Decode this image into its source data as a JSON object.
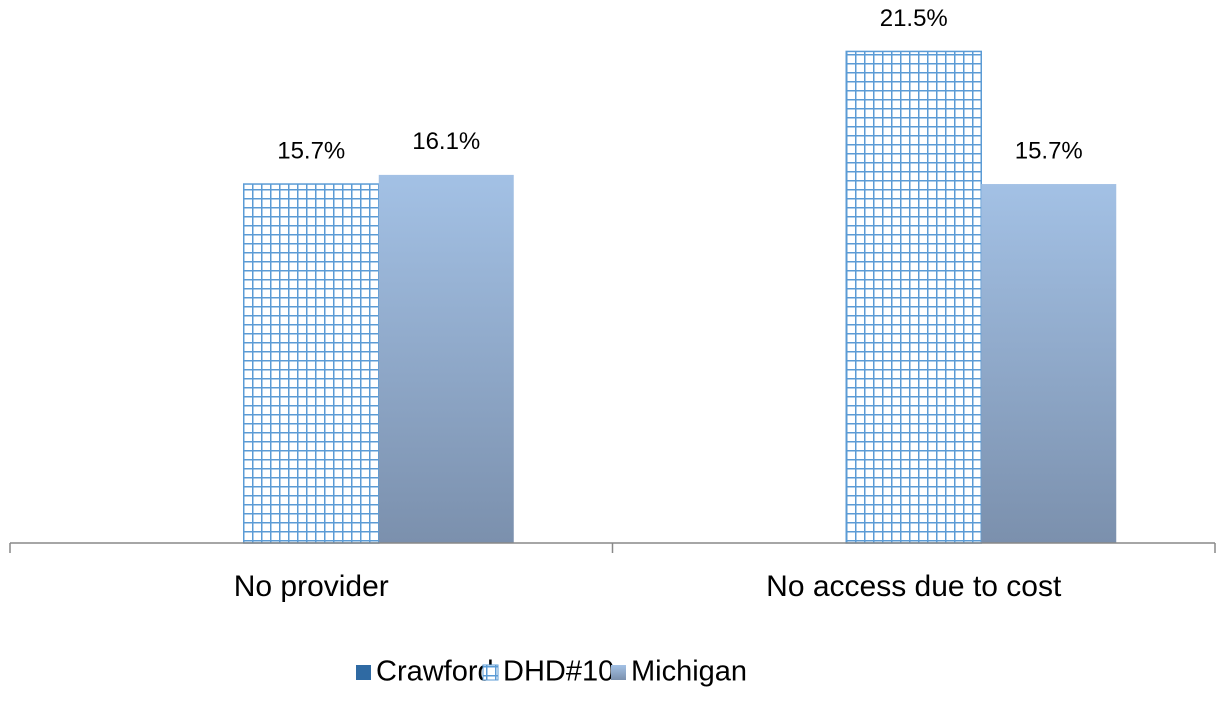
{
  "chart_data": {
    "type": "bar",
    "categories": [
      "No provider",
      "No access due to cost"
    ],
    "series": [
      {
        "name": "Crawford",
        "color": "#2f6aa3",
        "values": [
          null,
          null
        ],
        "value_labels": [
          null,
          null
        ]
      },
      {
        "name": "DHD#10",
        "color": "#5b9bd5",
        "pattern": "grid",
        "values": [
          15.7,
          21.5
        ],
        "value_labels": [
          "15.7%",
          "21.5%"
        ]
      },
      {
        "name": "Michigan",
        "color": "#a3c1e5",
        "gradient": true,
        "values": [
          16.1,
          15.7
        ],
        "value_labels": [
          "16.1%",
          "15.7%"
        ]
      }
    ],
    "ylim": [
      0,
      22
    ],
    "legend": "bottom"
  }
}
